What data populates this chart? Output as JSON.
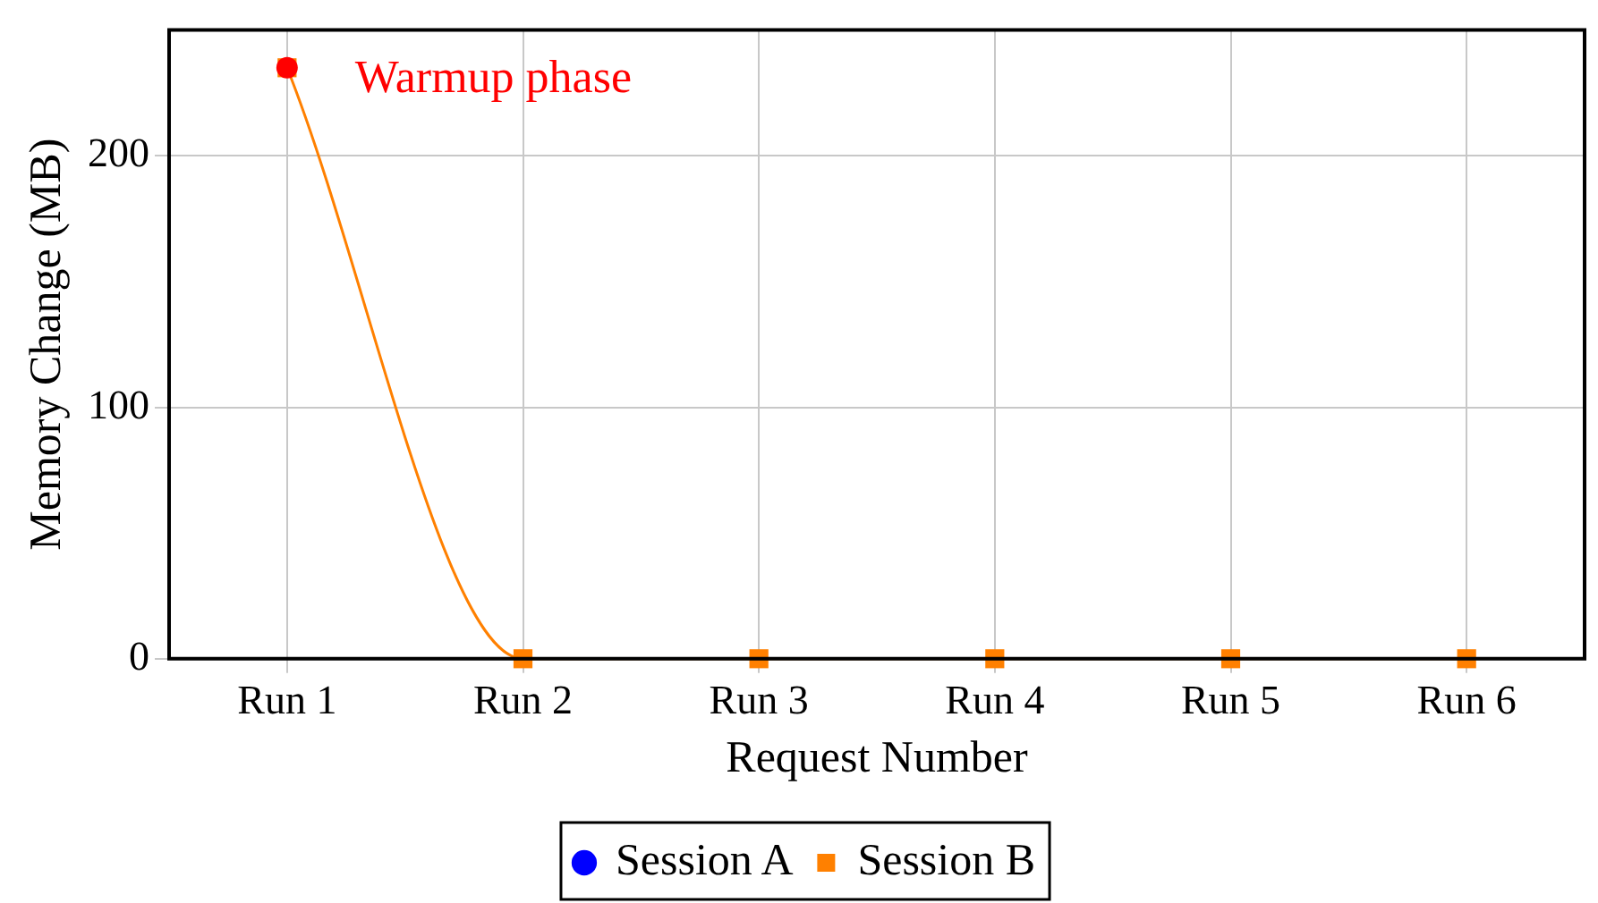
{
  "chart_data": {
    "type": "line",
    "xlabel": "Request Number",
    "ylabel": "Memory Change (MB)",
    "categories": [
      "Run 1",
      "Run 2",
      "Run 3",
      "Run 4",
      "Run 5",
      "Run 6"
    ],
    "series": [
      {
        "name": "Session A",
        "color": "#0000ff",
        "marker": "circle",
        "values": [
          null,
          null,
          null,
          null,
          null,
          null
        ]
      },
      {
        "name": "Session B",
        "color": "#ff8000",
        "marker": "square",
        "values": [
          235,
          0,
          0,
          0,
          0,
          0
        ]
      },
      {
        "type": "scatter",
        "color": "#ff0000",
        "marker": "circle",
        "values": [
          235,
          null,
          null,
          null,
          null,
          null
        ]
      }
    ],
    "ylim": [
      0,
      250
    ],
    "yticks": [
      0,
      100,
      200
    ],
    "grid": true,
    "legend": "bottom",
    "line_style": "solid",
    "annotations": [
      {
        "text": "Warmup phase",
        "x": "Run 1",
        "y": 235
      }
    ]
  }
}
